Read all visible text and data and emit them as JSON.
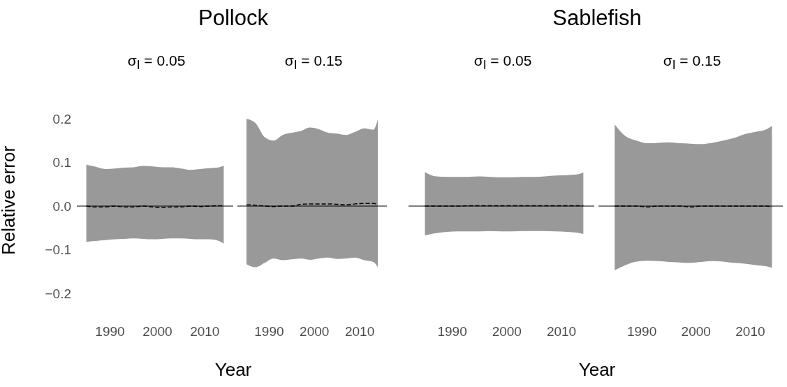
{
  "chart_data": [
    {
      "type": "line",
      "title": "Pollock",
      "subtitle": "σ$_{I}$ = 0.05",
      "xlabel": "Year",
      "ylabel": "Relative error",
      "x": [
        1985,
        1987,
        1989,
        1991,
        1993,
        1995,
        1997,
        1999,
        2001,
        2003,
        2005,
        2007,
        2009,
        2011,
        2013,
        2014
      ],
      "xlim": [
        1983,
        2016
      ],
      "xticks": [
        1990,
        2000,
        2010
      ],
      "ylim": [
        -0.2,
        0.2
      ],
      "yticks": [
        {
          "value": 0.2,
          "label": "0.2"
        },
        {
          "value": 0.1,
          "label": "0.1"
        },
        {
          "value": 0,
          "label": "0.0"
        },
        {
          "value": -0.1,
          "label": "−0.1"
        },
        {
          "value": -0.2,
          "label": "−0.2"
        }
      ],
      "line_style": "dashed",
      "ref_lines": [
        {
          "axis": "y",
          "value": 0,
          "color": "#000000"
        }
      ],
      "series": [
        {
          "color": "#000000",
          "values": [
            0,
            -0.002,
            -0.002,
            0,
            -0.002,
            -0.002,
            0,
            -0.002,
            -0.003,
            -0.002,
            -0.002,
            0,
            -0.001,
            0,
            0.001,
            0
          ],
          "lower": [
            -0.082,
            -0.08,
            -0.078,
            -0.076,
            -0.075,
            -0.074,
            -0.075,
            -0.076,
            -0.075,
            -0.074,
            -0.074,
            -0.075,
            -0.076,
            -0.076,
            -0.08,
            -0.086
          ],
          "upper": [
            0.095,
            0.09,
            0.085,
            0.086,
            0.088,
            0.089,
            0.092,
            0.091,
            0.089,
            0.089,
            0.086,
            0.083,
            0.085,
            0.087,
            0.089,
            0.093
          ]
        }
      ]
    },
    {
      "type": "line",
      "subtitle": "σ$_{I}$ = 0.15",
      "x": [
        1985,
        1987,
        1989,
        1991,
        1993,
        1995,
        1997,
        1999,
        2001,
        2003,
        2005,
        2007,
        2009,
        2011,
        2013,
        2014
      ],
      "xlim": [
        1983,
        2016
      ],
      "xticks": [
        1990,
        2000,
        2010
      ],
      "ylim": [
        -0.2,
        0.2
      ],
      "tick_labels": "x",
      "line_style": "dashed",
      "ref_lines": [
        {
          "axis": "y",
          "value": 0,
          "color": "#000000"
        }
      ],
      "series": [
        {
          "color": "#000000",
          "values": [
            0.003,
            0.002,
            0,
            -0.001,
            0,
            0,
            0.004,
            0.005,
            0.005,
            0.005,
            0.004,
            0.003,
            0.005,
            0.006,
            0.006,
            0.004
          ],
          "lower": [
            -0.133,
            -0.14,
            -0.13,
            -0.12,
            -0.124,
            -0.122,
            -0.12,
            -0.123,
            -0.12,
            -0.118,
            -0.121,
            -0.12,
            -0.118,
            -0.124,
            -0.128,
            -0.14
          ],
          "upper": [
            0.2,
            0.19,
            0.158,
            0.15,
            0.163,
            0.168,
            0.172,
            0.18,
            0.176,
            0.168,
            0.166,
            0.163,
            0.17,
            0.178,
            0.175,
            0.198
          ]
        }
      ]
    },
    {
      "type": "line",
      "title": "Sablefish",
      "subtitle": "σ$_{I}$ = 0.05",
      "xlabel": "Year",
      "x": [
        1985,
        1987,
        1989,
        1991,
        1993,
        1995,
        1997,
        1999,
        2001,
        2003,
        2005,
        2007,
        2009,
        2011,
        2013,
        2014
      ],
      "xlim": [
        1982,
        2016
      ],
      "xticks": [
        1990,
        2000,
        2010
      ],
      "ylim": [
        -0.2,
        0.2
      ],
      "tick_labels": "x",
      "line_style": "dashed",
      "ref_lines": [
        {
          "axis": "y",
          "value": 0,
          "color": "#000000"
        }
      ],
      "series": [
        {
          "color": "#000000",
          "values": [
            0,
            0,
            0,
            0,
            0.001,
            0.001,
            0.001,
            0.001,
            0.001,
            0.001,
            0.001,
            0.001,
            0.001,
            0.001,
            0.001,
            0.001
          ],
          "lower": [
            -0.067,
            -0.062,
            -0.059,
            -0.058,
            -0.058,
            -0.058,
            -0.057,
            -0.058,
            -0.058,
            -0.057,
            -0.057,
            -0.057,
            -0.058,
            -0.059,
            -0.061,
            -0.064
          ],
          "upper": [
            0.078,
            0.068,
            0.067,
            0.067,
            0.067,
            0.068,
            0.067,
            0.066,
            0.066,
            0.067,
            0.067,
            0.068,
            0.07,
            0.071,
            0.073,
            0.077
          ]
        }
      ]
    },
    {
      "type": "line",
      "subtitle": "σ$_{I}$ = 0.15",
      "x": [
        1985,
        1987,
        1989,
        1991,
        1993,
        1995,
        1997,
        1999,
        2001,
        2003,
        2005,
        2007,
        2009,
        2011,
        2013,
        2014
      ],
      "xlim": [
        1982,
        2016
      ],
      "xticks": [
        1990,
        2000,
        2010
      ],
      "ylim": [
        -0.2,
        0.2
      ],
      "tick_labels": "x",
      "line_style": "dashed",
      "ref_lines": [
        {
          "axis": "y",
          "value": 0,
          "color": "#000000"
        }
      ],
      "series": [
        {
          "color": "#000000",
          "values": [
            0,
            0,
            0,
            -0.002,
            0,
            0,
            0,
            -0.002,
            0,
            0,
            0,
            0,
            0,
            0,
            0,
            -0.002
          ],
          "lower": [
            -0.147,
            -0.135,
            -0.127,
            -0.125,
            -0.126,
            -0.128,
            -0.129,
            -0.13,
            -0.128,
            -0.126,
            -0.127,
            -0.13,
            -0.132,
            -0.135,
            -0.138,
            -0.141
          ],
          "upper": [
            0.187,
            0.16,
            0.15,
            0.144,
            0.145,
            0.146,
            0.144,
            0.143,
            0.142,
            0.145,
            0.15,
            0.156,
            0.165,
            0.17,
            0.176,
            0.184
          ]
        }
      ]
    }
  ]
}
